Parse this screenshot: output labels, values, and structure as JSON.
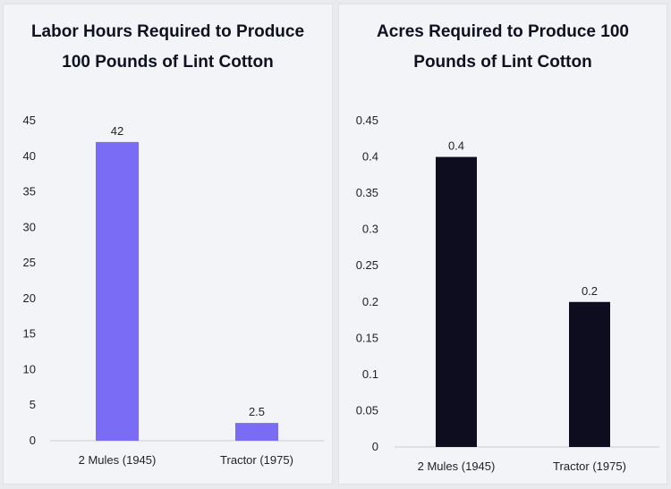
{
  "chart_data": [
    {
      "type": "bar",
      "title": "Labor Hours Required to Produce 100 Pounds of Lint Cotton",
      "categories": [
        "2 Mules (1945)",
        "Tractor (1975)"
      ],
      "values": [
        42,
        2.5
      ],
      "data_labels": [
        "42",
        "2.5"
      ],
      "ylim": [
        0,
        45
      ],
      "yticks": [
        0,
        5,
        10,
        15,
        20,
        25,
        30,
        35,
        40,
        45
      ],
      "ytick_labels": [
        "0",
        "5",
        "10",
        "15",
        "20",
        "25",
        "30",
        "35",
        "40",
        "45"
      ],
      "bar_color": "#7b6cf6",
      "grid": false
    },
    {
      "type": "bar",
      "title": "Acres Required to Produce 100 Pounds of Lint Cotton",
      "categories": [
        "2 Mules (1945)",
        "Tractor (1975)"
      ],
      "values": [
        0.4,
        0.2
      ],
      "data_labels": [
        "0.4",
        "0.2"
      ],
      "ylim": [
        0,
        0.45
      ],
      "yticks": [
        0,
        0.05,
        0.1,
        0.15,
        0.2,
        0.25,
        0.3,
        0.35,
        0.4,
        0.45
      ],
      "ytick_labels": [
        "0",
        "0.05",
        "0.1",
        "0.15",
        "0.2",
        "0.25",
        "0.3",
        "0.35",
        "0.4",
        "0.45"
      ],
      "bar_color": "#0e0d20",
      "grid": false
    }
  ]
}
